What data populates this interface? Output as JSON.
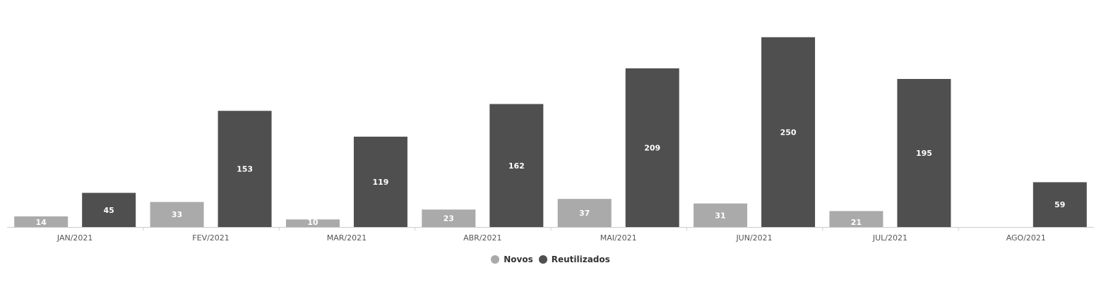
{
  "chart_data": {
    "type": "bar",
    "categories": [
      "JAN/2021",
      "FEV/2021",
      "MAR/2021",
      "ABR/2021",
      "MAI/2021",
      "JUN/2021",
      "JUL/2021",
      "AGO/2021"
    ],
    "series": [
      {
        "name": "Novos",
        "values": [
          14,
          33,
          10,
          23,
          37,
          31,
          21,
          null
        ],
        "color": "#aaaaaa"
      },
      {
        "name": "Reutilizados",
        "values": [
          45,
          153,
          119,
          162,
          209,
          250,
          195,
          59
        ],
        "color": "#4f4f4f"
      }
    ],
    "title": "",
    "xlabel": "",
    "ylabel": "",
    "ylim": [
      0,
      260
    ],
    "grid": false,
    "legend_position": "bottom-center"
  }
}
